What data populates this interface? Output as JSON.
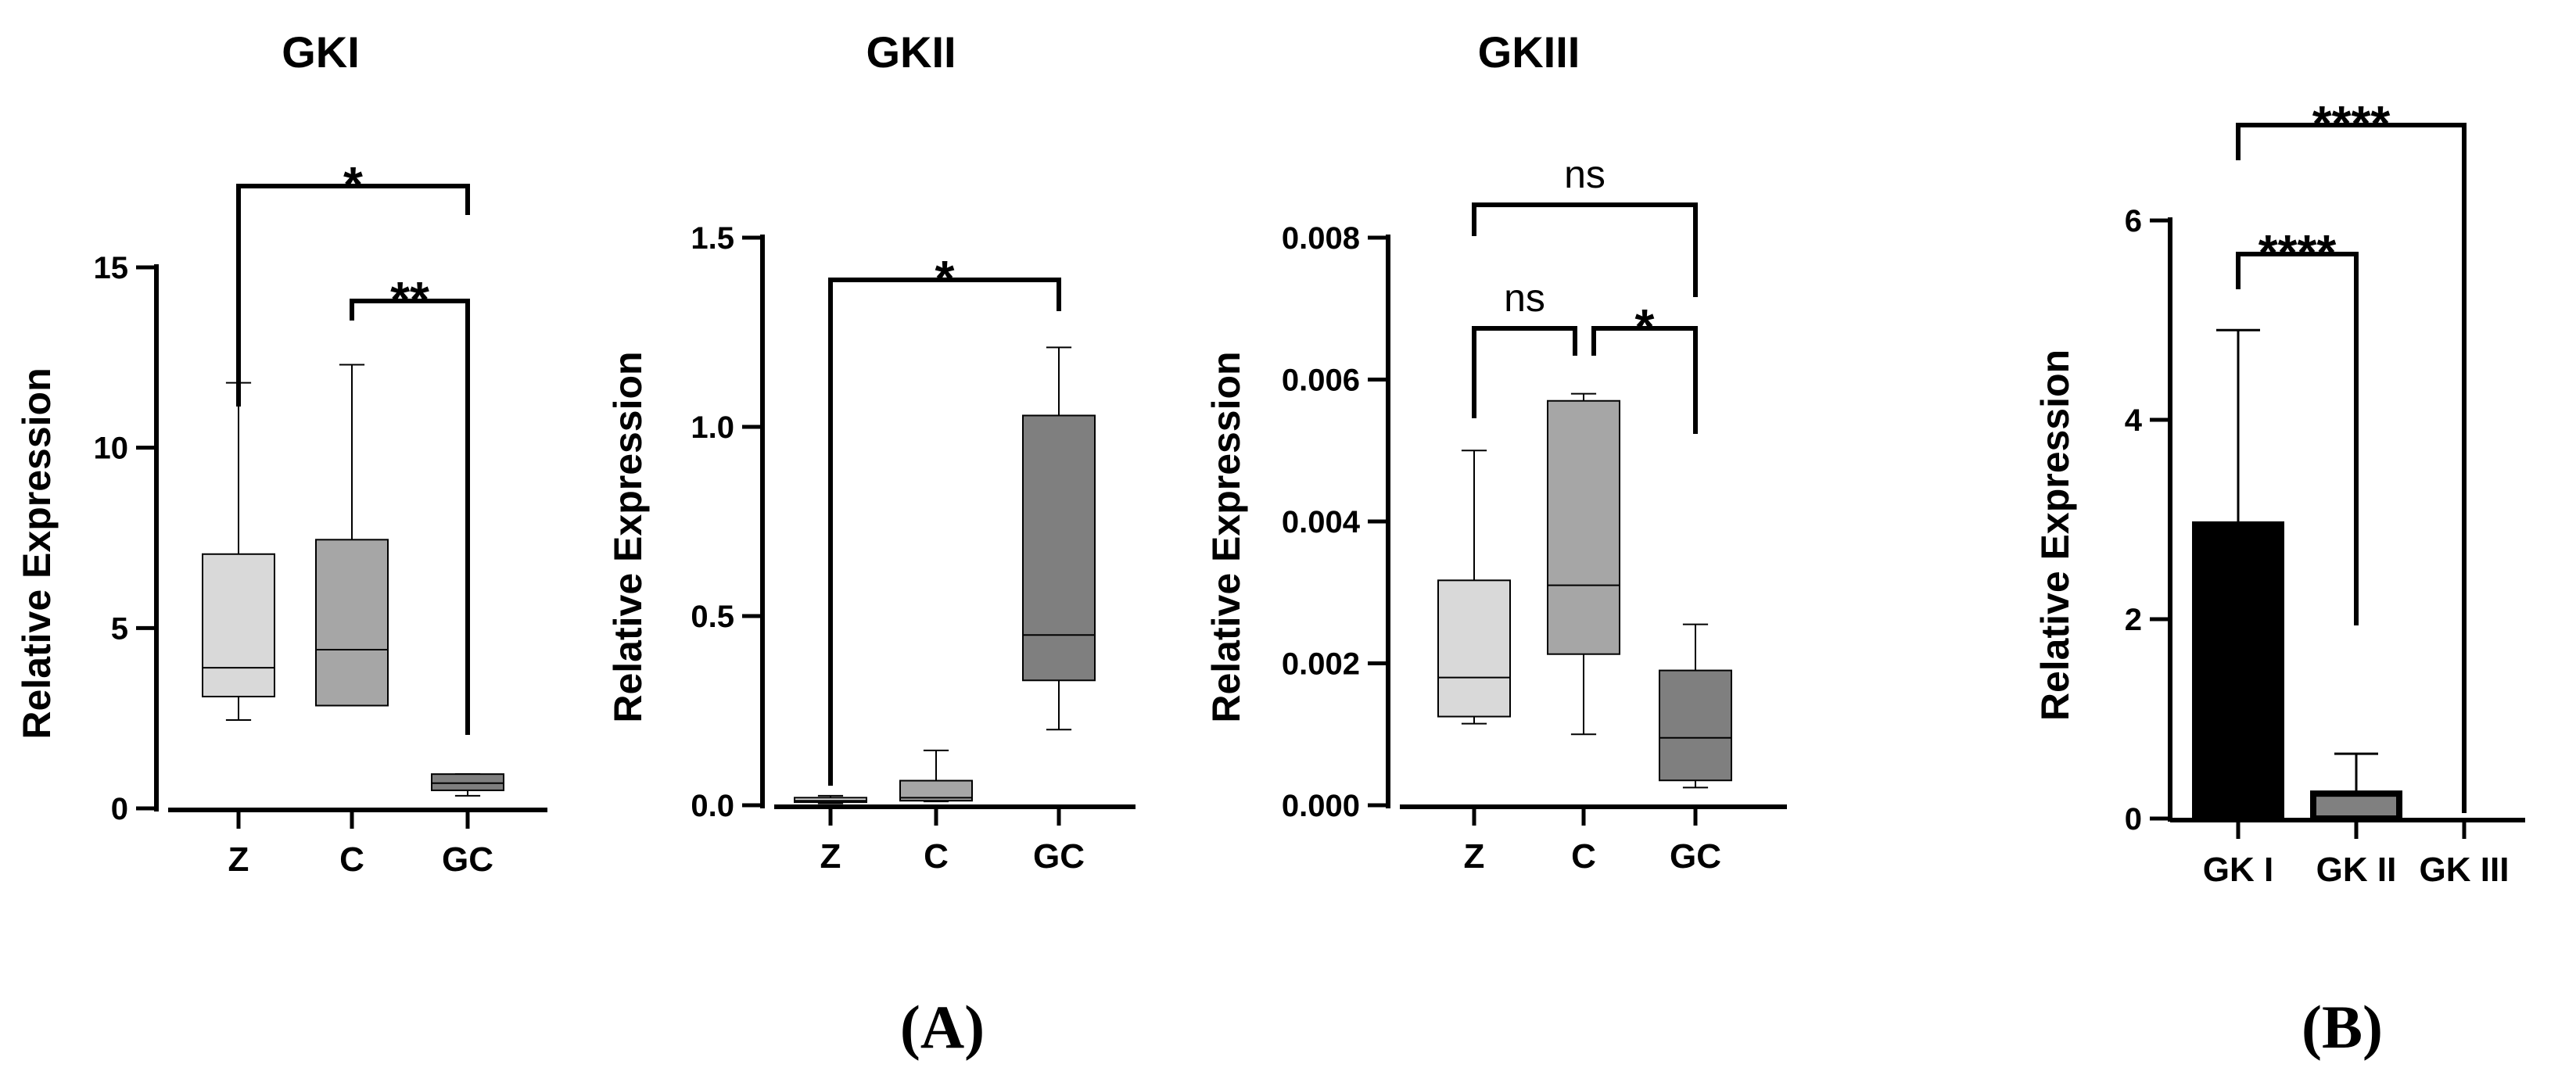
{
  "chart_data": [
    {
      "type": "box",
      "title": "GKI",
      "xlabel": "",
      "ylabel": "Relative Expression",
      "ylim": [
        0,
        15
      ],
      "yticks": [
        0,
        5,
        10,
        15
      ],
      "ytick_labels": [
        "0",
        "5",
        "10",
        "15"
      ],
      "categories": [
        "Z",
        "C",
        "GC"
      ],
      "boxes": [
        {
          "category": "Z",
          "min": 2.45,
          "q1": 3.1,
          "median": 3.9,
          "q3": 7.05,
          "max": 11.8,
          "color": "#d9d9d9"
        },
        {
          "category": "C",
          "min": 2.85,
          "q1": 2.85,
          "median": 4.4,
          "q3": 7.45,
          "max": 12.3,
          "color": "#a6a6a6"
        },
        {
          "category": "GC",
          "min": 0.35,
          "q1": 0.5,
          "median": 0.7,
          "q3": 0.95,
          "max": 0.95,
          "color": "#7f7f7f"
        }
      ],
      "annotations": [
        {
          "from": "Z",
          "to": "GC",
          "label": "*"
        },
        {
          "from": "C",
          "to": "GC",
          "label": "**"
        }
      ]
    },
    {
      "type": "box",
      "title": "GKII",
      "xlabel": "",
      "ylabel": "Relative Expression",
      "ylim": [
        0,
        1.5
      ],
      "yticks": [
        0,
        0.5,
        1.0,
        1.5
      ],
      "ytick_labels": [
        "0.0",
        "0.5",
        "1.0",
        "1.5"
      ],
      "categories": [
        "Z",
        "C",
        "GC"
      ],
      "boxes": [
        {
          "category": "Z",
          "min": 0.005,
          "q1": 0.008,
          "median": 0.012,
          "q3": 0.02,
          "max": 0.025,
          "color": "#d9d9d9"
        },
        {
          "category": "C",
          "min": 0.01,
          "q1": 0.012,
          "median": 0.02,
          "q3": 0.065,
          "max": 0.145,
          "color": "#a6a6a6"
        },
        {
          "category": "GC",
          "min": 0.2,
          "q1": 0.33,
          "median": 0.45,
          "q3": 1.03,
          "max": 1.21,
          "color": "#7f7f7f"
        }
      ],
      "annotations": [
        {
          "from": "Z",
          "to": "GC",
          "label": "*"
        }
      ]
    },
    {
      "type": "box",
      "title": "GKIII",
      "xlabel": "",
      "ylabel": "Relative Expression",
      "ylim": [
        0,
        0.008
      ],
      "yticks": [
        0,
        0.002,
        0.004,
        0.006,
        0.008
      ],
      "ytick_labels": [
        "0.000",
        "0.002",
        "0.004",
        "0.006",
        "0.008"
      ],
      "categories": [
        "Z",
        "C",
        "GC"
      ],
      "boxes": [
        {
          "category": "Z",
          "min": 0.00115,
          "q1": 0.00125,
          "median": 0.0018,
          "q3": 0.00317,
          "max": 0.005,
          "color": "#d9d9d9"
        },
        {
          "category": "C",
          "min": 0.001,
          "q1": 0.00213,
          "median": 0.0031,
          "q3": 0.0057,
          "max": 0.0058,
          "color": "#a6a6a6"
        },
        {
          "category": "GC",
          "min": 0.00025,
          "q1": 0.00035,
          "median": 0.00095,
          "q3": 0.0019,
          "max": 0.00255,
          "color": "#7f7f7f"
        }
      ],
      "annotations": [
        {
          "from": "Z",
          "to": "C",
          "label": "ns"
        },
        {
          "from": "C",
          "to": "GC",
          "label": "*"
        },
        {
          "from": "Z",
          "to": "GC",
          "label": "ns"
        }
      ]
    },
    {
      "type": "bar",
      "title": "",
      "xlabel": "",
      "ylabel": "Relative Expression",
      "ylim": [
        0,
        6
      ],
      "yticks": [
        0,
        2,
        4,
        6
      ],
      "ytick_labels": [
        "0",
        "2",
        "4",
        "6"
      ],
      "categories": [
        "GK I",
        "GK II",
        "GK III"
      ],
      "values": [
        2.95,
        0.25,
        0.0
      ],
      "errors": [
        1.95,
        0.4,
        0.0
      ],
      "colors": [
        "#000000",
        "#808080",
        "#ffffff"
      ],
      "annotations": [
        {
          "from": "GK I",
          "to": "GK II",
          "label": "****"
        },
        {
          "from": "GK I",
          "to": "GK III",
          "label": "****"
        }
      ]
    }
  ],
  "panel_labels": [
    "(A)",
    "(B)"
  ]
}
